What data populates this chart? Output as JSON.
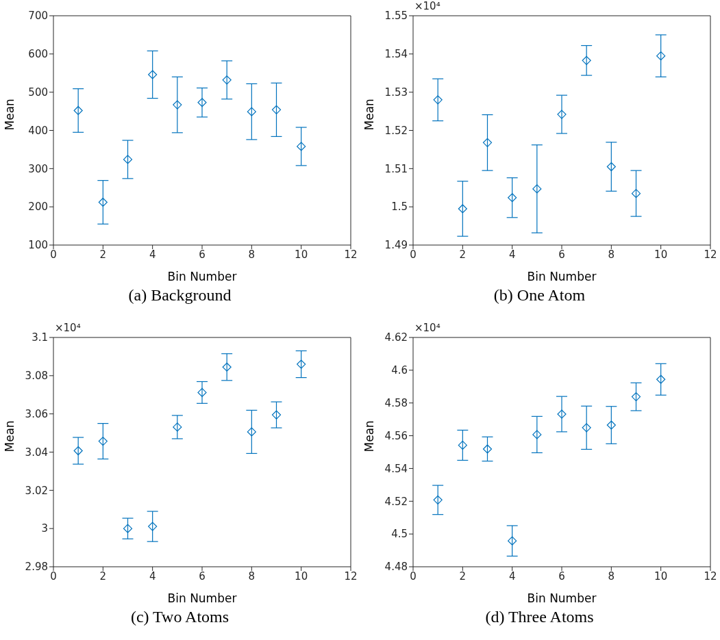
{
  "chart_data": [
    {
      "type": "scatter",
      "title": "(a) Background",
      "xlabel": "Bin Number",
      "ylabel": "Mean",
      "marker": "diamond",
      "x": [
        1,
        2,
        3,
        4,
        5,
        6,
        7,
        8,
        9,
        10
      ],
      "series": [
        {
          "color": "#0072bd",
          "values": [
            452,
            212,
            324,
            546,
            467,
            473,
            532,
            449,
            454,
            358
          ],
          "errors": [
            57,
            57,
            50,
            62,
            73,
            38,
            50,
            73,
            70,
            50
          ]
        }
      ],
      "xlim": [
        0,
        12
      ],
      "xticks": [
        0,
        2,
        4,
        6,
        8,
        10,
        12
      ],
      "ylim": [
        100,
        700
      ],
      "yticks": [
        100,
        200,
        300,
        400,
        500,
        600,
        700
      ]
    },
    {
      "type": "scatter",
      "title": "(b) One Atom",
      "xlabel": "Bin Number",
      "ylabel": "Mean",
      "marker": "diamond",
      "annotations": [
        "×10⁴"
      ],
      "x": [
        1,
        2,
        3,
        4,
        5,
        6,
        7,
        8,
        9,
        10
      ],
      "series": [
        {
          "color": "#0072bd",
          "values": [
            1.528,
            1.4995,
            1.5168,
            1.5024,
            1.5047,
            1.5242,
            1.5383,
            1.5105,
            1.5035,
            1.5395
          ],
          "errors": [
            0.0055,
            0.0072,
            0.0073,
            0.0052,
            0.0115,
            0.005,
            0.0039,
            0.0064,
            0.006,
            0.0055
          ]
        }
      ],
      "xlim": [
        0,
        12
      ],
      "xticks": [
        0,
        2,
        4,
        6,
        8,
        10,
        12
      ],
      "ylim": [
        1.49,
        1.55
      ],
      "yticks": [
        1.49,
        1.5,
        1.51,
        1.52,
        1.53,
        1.54,
        1.55
      ]
    },
    {
      "type": "scatter",
      "title": "(c) Two Atoms",
      "xlabel": "Bin Number",
      "ylabel": "Mean",
      "marker": "diamond",
      "annotations": [
        "×10⁴"
      ],
      "x": [
        1,
        2,
        3,
        4,
        5,
        6,
        7,
        8,
        9,
        10
      ],
      "series": [
        {
          "color": "#0072bd",
          "values": [
            3.0407,
            3.0457,
            3.0,
            3.0011,
            3.0531,
            3.0712,
            3.0845,
            3.0506,
            3.0595,
            3.086
          ],
          "errors": [
            0.007,
            0.0093,
            0.0054,
            0.0079,
            0.0061,
            0.0057,
            0.007,
            0.0113,
            0.0068,
            0.007
          ]
        }
      ],
      "xlim": [
        0,
        12
      ],
      "xticks": [
        0,
        2,
        4,
        6,
        8,
        10,
        12
      ],
      "ylim": [
        2.98,
        3.1
      ],
      "yticks": [
        2.98,
        3,
        3.02,
        3.04,
        3.06,
        3.08,
        3.1
      ]
    },
    {
      "type": "scatter",
      "title": "(d) Three Atoms",
      "xlabel": "Bin Number",
      "ylabel": "Mean",
      "marker": "diamond",
      "annotations": [
        "×10⁴"
      ],
      "x": [
        1,
        2,
        3,
        4,
        5,
        6,
        7,
        8,
        9,
        10
      ],
      "series": [
        {
          "color": "#0072bd",
          "values": [
            4.5208,
            4.5542,
            4.5519,
            4.4958,
            4.5607,
            4.5732,
            4.5649,
            4.5665,
            4.5838,
            4.5944
          ],
          "errors": [
            0.0089,
            0.0092,
            0.0074,
            0.0093,
            0.0111,
            0.0108,
            0.0132,
            0.0114,
            0.0085,
            0.0096
          ]
        }
      ],
      "xlim": [
        0,
        12
      ],
      "xticks": [
        0,
        2,
        4,
        6,
        8,
        10,
        12
      ],
      "ylim": [
        4.48,
        4.62
      ],
      "yticks": [
        4.48,
        4.5,
        4.52,
        4.54,
        4.56,
        4.58,
        4.6,
        4.62
      ]
    }
  ]
}
